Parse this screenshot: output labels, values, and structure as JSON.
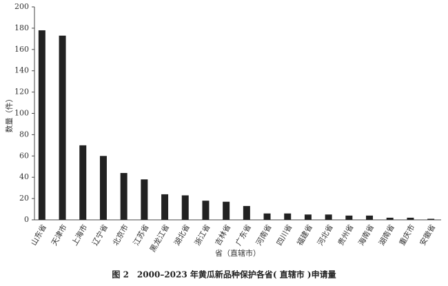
{
  "chart_data": {
    "type": "bar",
    "title": "图 2　2000–2023 年黄瓜新品种保护各省( 直辖市 )申请量",
    "x_label": "省（直辖市）",
    "y_label": "数量（件）",
    "categories": [
      "山东省",
      "天津市",
      "上海市",
      "辽宁省",
      "北京市",
      "江苏省",
      "黑龙江省",
      "湖北省",
      "浙江省",
      "吉林省",
      "广东省",
      "河南省",
      "四川省",
      "福建省",
      "河北省",
      "贵州省",
      "海南省",
      "湖南省",
      "重庆市",
      "安徽省"
    ],
    "values": [
      178,
      173,
      70,
      60,
      44,
      38,
      24,
      23,
      18,
      17,
      13,
      6,
      6,
      5,
      5,
      4,
      4,
      2,
      2,
      1
    ],
    "color": "#222222",
    "ylim": [
      0,
      200
    ],
    "yticks": [
      0,
      20,
      40,
      60,
      80,
      100,
      120,
      140,
      160,
      180,
      200
    ],
    "grid": false
  }
}
